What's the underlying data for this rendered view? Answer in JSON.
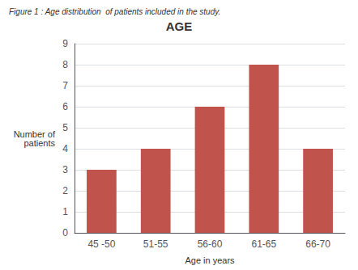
{
  "chart_data": {
    "type": "bar",
    "title": "AGE",
    "caption": "Figure 1 : Age distribution  of patients included in the study.",
    "xlabel": "Age in years",
    "ylabel": "Number of\npatients",
    "categories": [
      "45 -50",
      "51-55",
      "56-60",
      "61-65",
      "66-70"
    ],
    "values": [
      3,
      4,
      6,
      8,
      4
    ],
    "color": "#c0544d",
    "ylim": [
      0,
      9
    ],
    "yticks": [
      0,
      1,
      2,
      3,
      4,
      5,
      6,
      7,
      8,
      9
    ],
    "grid": true
  }
}
